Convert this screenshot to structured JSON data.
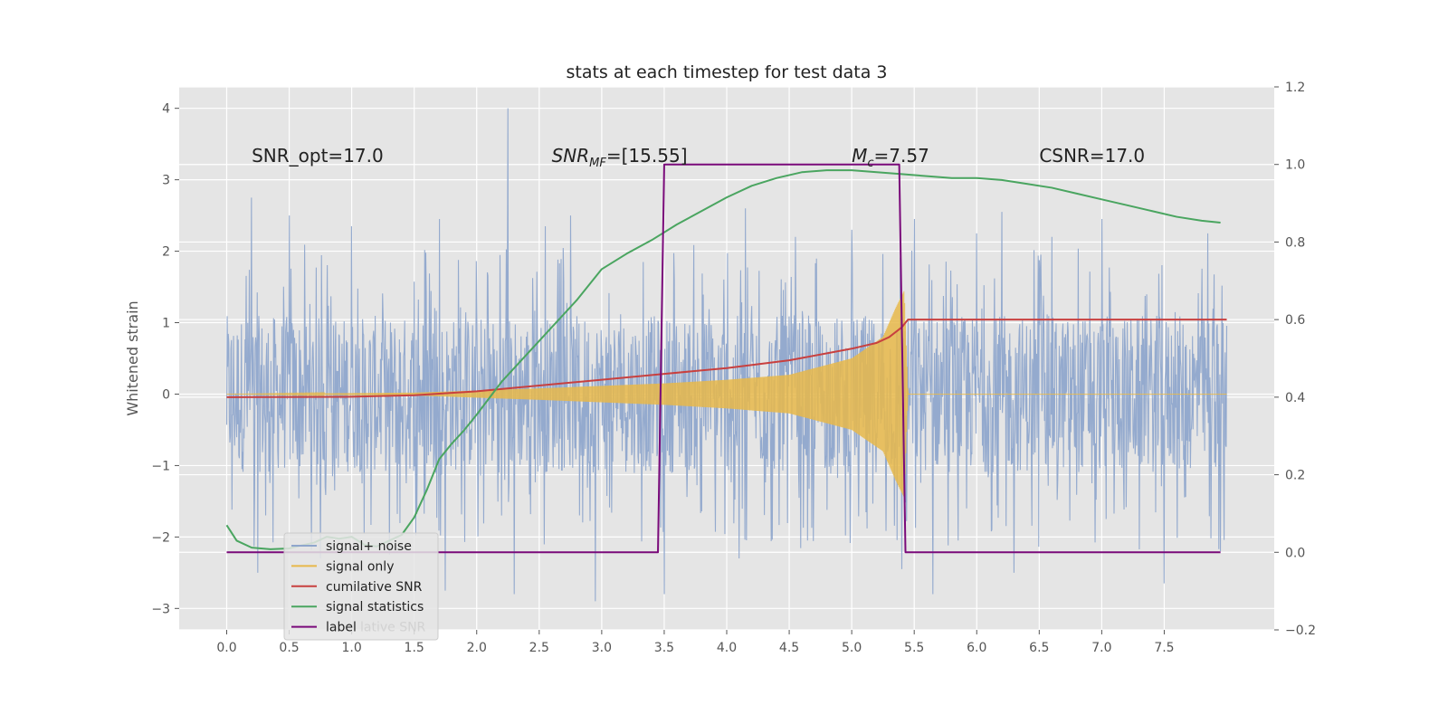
{
  "chart_data": {
    "type": "line",
    "title": "stats at each timestep for test data 3",
    "xlabel": "",
    "ylabel": "Whitened strain",
    "y2label": "",
    "xlim": [
      -0.38,
      8.38
    ],
    "ylim": [
      -3.3,
      4.3
    ],
    "y2lim": [
      -0.2,
      1.2
    ],
    "xticks": [
      "0.0",
      "0.5",
      "1.0",
      "1.5",
      "2.0",
      "2.5",
      "3.0",
      "3.5",
      "4.0",
      "4.5",
      "5.0",
      "5.5",
      "6.0",
      "6.5",
      "7.0",
      "7.5"
    ],
    "yticks": [
      "−3",
      "−2",
      "−1",
      "0",
      "1",
      "2",
      "3",
      "4"
    ],
    "y2ticks": [
      "−0.2",
      "0.0",
      "0.2",
      "0.4",
      "0.6",
      "0.8",
      "1.0",
      "1.2"
    ],
    "grid": true,
    "legend_position": "lower-left",
    "annotations": [
      {
        "id": "snr-opt",
        "text": "SNR_opt=17.0",
        "x": 0.2,
        "y": 3.25
      },
      {
        "id": "snr-mf",
        "text": "SNR_MF=[15.55]",
        "x": 2.6,
        "y": 3.25
      },
      {
        "id": "mc",
        "text": "M_c=7.57",
        "x": 5.0,
        "y": 3.25
      },
      {
        "id": "csnr",
        "text": "CSNR=17.0",
        "x": 6.5,
        "y": 3.25
      }
    ],
    "series": [
      {
        "id": "signal-noise",
        "name": "signal+ noise",
        "axis": "left",
        "color": "#8fa6cc",
        "kind": "noise",
        "x_range": [
          0.0,
          8.0
        ],
        "band": [
          -1.1,
          1.1
        ],
        "peaks": [
          {
            "x": 0.2,
            "y": 2.75
          },
          {
            "x": 0.5,
            "y": 2.5
          },
          {
            "x": 1.0,
            "y": 2.35
          },
          {
            "x": 1.3,
            "y": 2.55
          },
          {
            "x": 1.7,
            "y": 2.45
          },
          {
            "x": 2.25,
            "y": 4.0
          },
          {
            "x": 2.55,
            "y": 2.35
          },
          {
            "x": 2.75,
            "y": 2.5
          },
          {
            "x": 3.5,
            "y": 2.45
          },
          {
            "x": 4.15,
            "y": 2.6
          },
          {
            "x": 4.55,
            "y": 2.2
          },
          {
            "x": 5.0,
            "y": 2.3
          },
          {
            "x": 5.5,
            "y": 2.45
          },
          {
            "x": 6.0,
            "y": 2.25
          },
          {
            "x": 6.2,
            "y": 2.55
          },
          {
            "x": 6.6,
            "y": 2.2
          },
          {
            "x": 7.0,
            "y": 2.45
          },
          {
            "x": 7.5,
            "y": 2.35
          },
          {
            "x": 7.85,
            "y": 2.25
          }
        ],
        "troughs": [
          {
            "x": 0.25,
            "y": -2.5
          },
          {
            "x": 0.75,
            "y": -2.3
          },
          {
            "x": 1.3,
            "y": -2.25
          },
          {
            "x": 1.75,
            "y": -2.75
          },
          {
            "x": 2.3,
            "y": -2.8
          },
          {
            "x": 2.95,
            "y": -2.9
          },
          {
            "x": 3.5,
            "y": -2.8
          },
          {
            "x": 4.1,
            "y": -2.3
          },
          {
            "x": 5.4,
            "y": -2.45
          },
          {
            "x": 5.65,
            "y": -2.8
          },
          {
            "x": 6.3,
            "y": -2.5
          },
          {
            "x": 7.5,
            "y": -2.65
          },
          {
            "x": 7.95,
            "y": -2.2
          }
        ]
      },
      {
        "id": "signal-only",
        "name": "signal only",
        "axis": "left",
        "color": "#e8b84a",
        "kind": "chirp",
        "amplitude": [
          {
            "x": 0.0,
            "y": 0.0
          },
          {
            "x": 1.5,
            "y": 0.02
          },
          {
            "x": 2.5,
            "y": 0.08
          },
          {
            "x": 3.5,
            "y": 0.15
          },
          {
            "x": 4.0,
            "y": 0.2
          },
          {
            "x": 4.5,
            "y": 0.27
          },
          {
            "x": 5.0,
            "y": 0.5
          },
          {
            "x": 5.25,
            "y": 0.8
          },
          {
            "x": 5.35,
            "y": 1.2
          },
          {
            "x": 5.42,
            "y": 1.45
          },
          {
            "x": 5.45,
            "y": 0.0
          },
          {
            "x": 8.0,
            "y": 0.0
          }
        ]
      },
      {
        "id": "cumulative-snr",
        "name": "cumilative SNR",
        "axis": "right",
        "color": "#c8403f",
        "x": [
          0.0,
          1.0,
          1.5,
          2.0,
          2.5,
          3.0,
          3.5,
          4.0,
          4.5,
          5.0,
          5.2,
          5.3,
          5.4,
          5.45,
          6.0,
          7.0,
          8.0
        ],
        "values": [
          0.4,
          0.401,
          0.405,
          0.415,
          0.43,
          0.445,
          0.46,
          0.475,
          0.495,
          0.525,
          0.54,
          0.555,
          0.58,
          0.6,
          0.6,
          0.6,
          0.6
        ]
      },
      {
        "id": "signal-statistics",
        "name": "signal statistics",
        "axis": "right",
        "color": "#4aa560",
        "x": [
          0.0,
          0.08,
          0.2,
          0.35,
          0.5,
          0.6,
          0.7,
          0.8,
          0.9,
          1.0,
          1.1,
          1.2,
          1.3,
          1.4,
          1.5,
          1.6,
          1.7,
          1.8,
          1.9,
          2.0,
          2.2,
          2.4,
          2.6,
          2.8,
          3.0,
          3.2,
          3.4,
          3.6,
          3.8,
          4.0,
          4.2,
          4.4,
          4.6,
          4.8,
          5.0,
          5.2,
          5.4,
          5.6,
          5.8,
          6.0,
          6.2,
          6.4,
          6.6,
          6.8,
          7.0,
          7.2,
          7.4,
          7.6,
          7.8,
          7.95
        ],
        "values": [
          0.07,
          0.03,
          0.012,
          0.008,
          0.01,
          0.018,
          0.025,
          0.04,
          0.035,
          0.04,
          0.02,
          0.015,
          0.03,
          0.045,
          0.09,
          0.16,
          0.24,
          0.28,
          0.315,
          0.355,
          0.44,
          0.51,
          0.58,
          0.65,
          0.73,
          0.77,
          0.805,
          0.845,
          0.88,
          0.915,
          0.945,
          0.965,
          0.98,
          0.985,
          0.985,
          0.98,
          0.975,
          0.97,
          0.965,
          0.965,
          0.96,
          0.95,
          0.94,
          0.925,
          0.91,
          0.895,
          0.88,
          0.865,
          0.855,
          0.85
        ]
      },
      {
        "id": "label",
        "name": "label",
        "axis": "right",
        "color": "#7a0a7a",
        "x": [
          0.0,
          3.45,
          3.5,
          5.38,
          5.43,
          7.95
        ],
        "values": [
          0.0,
          0.0,
          1.0,
          1.0,
          0.0,
          0.0
        ]
      }
    ],
    "legend_entries": [
      {
        "series": "signal-noise",
        "label": "signal+ noise"
      },
      {
        "series": "signal-only",
        "label": "signal only"
      },
      {
        "series": "cumulative-snr",
        "label": "cumilative SNR"
      },
      {
        "series": "signal-statistics",
        "label": "signal statistics"
      },
      {
        "series": "label",
        "label": "label"
      }
    ],
    "legend_ghost_text": "lative SNR"
  }
}
